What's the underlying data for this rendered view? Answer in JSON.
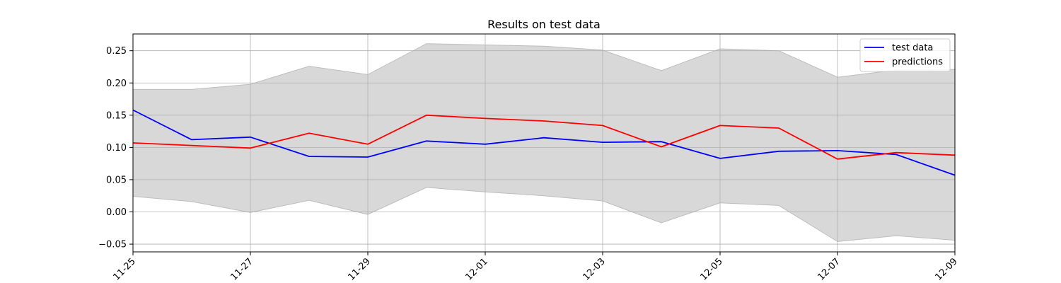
{
  "chart_data": {
    "type": "line",
    "title": "Results on test data",
    "xlabel": "",
    "ylabel": "",
    "x": [
      "11-25",
      "11-26",
      "11-27",
      "11-28",
      "11-29",
      "11-30",
      "12-01",
      "12-02",
      "12-03",
      "12-04",
      "12-05",
      "12-06",
      "12-07",
      "12-08",
      "12-09"
    ],
    "x_ticks": [
      "11-25",
      "11-27",
      "11-29",
      "12-01",
      "12-03",
      "12-05",
      "12-07",
      "12-09"
    ],
    "y_ticks": [
      -0.05,
      0.0,
      0.05,
      0.1,
      0.15,
      0.2,
      0.25
    ],
    "ylim": [
      -0.062,
      0.276
    ],
    "grid": true,
    "legend_position": "top-right",
    "series": [
      {
        "name": "test data",
        "color": "#0000ff",
        "values": [
          0.158,
          0.112,
          0.116,
          0.086,
          0.085,
          0.11,
          0.105,
          0.115,
          0.108,
          0.109,
          0.083,
          0.094,
          0.095,
          0.089,
          0.057
        ]
      },
      {
        "name": "predictions",
        "color": "#ff0000",
        "values": [
          0.107,
          0.103,
          0.099,
          0.122,
          0.105,
          0.15,
          0.145,
          0.141,
          0.134,
          0.101,
          0.134,
          0.13,
          0.082,
          0.092,
          0.088
        ]
      }
    ],
    "band": {
      "color": "#d8d8d8",
      "upper": [
        0.19,
        0.19,
        0.198,
        0.226,
        0.213,
        0.261,
        0.259,
        0.257,
        0.251,
        0.219,
        0.253,
        0.25,
        0.209,
        0.22,
        0.221
      ],
      "lower": [
        0.024,
        0.016,
        -0.001,
        0.018,
        -0.004,
        0.038,
        0.031,
        0.025,
        0.017,
        -0.017,
        0.014,
        0.01,
        -0.046,
        -0.037,
        -0.044
      ]
    }
  }
}
